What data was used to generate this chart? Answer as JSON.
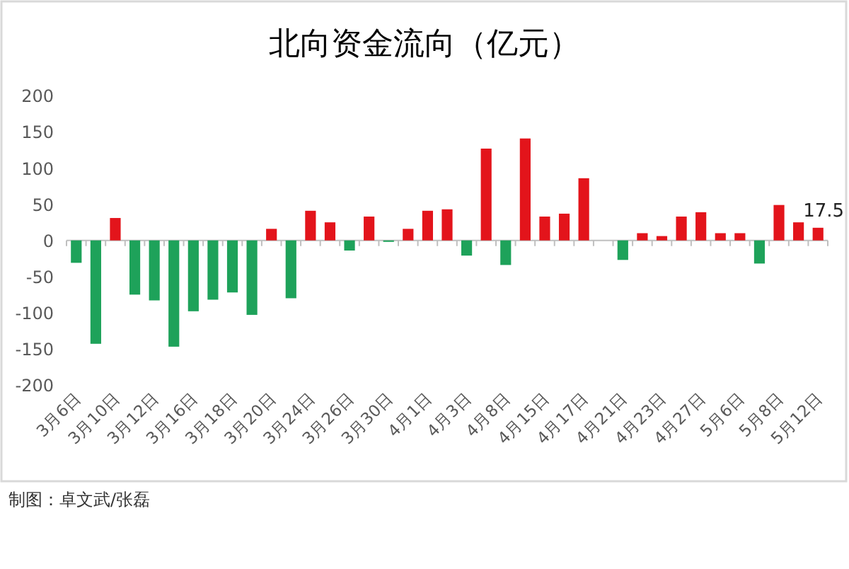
{
  "chart_data": {
    "type": "bar",
    "title": "北向资金流向（亿元）",
    "categories": [
      "3月6日",
      null,
      "3月10日",
      null,
      "3月12日",
      null,
      "3月16日",
      null,
      "3月18日",
      null,
      "3月20日",
      null,
      "3月24日",
      null,
      "3月26日",
      null,
      "3月30日",
      null,
      "4月1日",
      null,
      "4月3日",
      null,
      "4月8日",
      null,
      "4月15日",
      null,
      "4月17日",
      null,
      "4月21日",
      null,
      "4月23日",
      null,
      "4月27日",
      null,
      "5月6日",
      null,
      "5月8日",
      null,
      "5月12日"
    ],
    "values": [
      -31,
      -143,
      31,
      -75,
      -83,
      -147,
      -98,
      -82,
      -72,
      -103,
      16,
      -80,
      41,
      25,
      -14,
      33,
      -2,
      16,
      41,
      43,
      -21,
      127,
      -34,
      141,
      33,
      37,
      86,
      null,
      -27,
      10,
      6,
      33,
      39,
      10,
      10,
      -32,
      49,
      25,
      17.5
    ],
    "colors": [
      "#1ea25a",
      "#1ea25a",
      "#e3141b",
      "#1ea25a",
      "#1ea25a",
      "#1ea25a",
      "#1ea25a",
      "#1ea25a",
      "#1ea25a",
      "#1ea25a",
      "#e3141b",
      "#1ea25a",
      "#e3141b",
      "#e3141b",
      "#1ea25a",
      "#e3141b",
      "#1ea25a",
      "#e3141b",
      "#e3141b",
      "#e3141b",
      "#1ea25a",
      "#e3141b",
      "#1ea25a",
      "#e3141b",
      "#e3141b",
      "#e3141b",
      "#e3141b",
      null,
      "#1ea25a",
      "#e3141b",
      "#e3141b",
      "#e3141b",
      "#e3141b",
      "#e3141b",
      "#e3141b",
      "#1ea25a",
      "#e3141b",
      "#e3141b",
      "#e3141b"
    ],
    "value_labels": [
      null,
      null,
      null,
      null,
      null,
      null,
      null,
      null,
      null,
      null,
      null,
      null,
      null,
      null,
      null,
      null,
      null,
      null,
      null,
      null,
      null,
      null,
      null,
      null,
      null,
      null,
      null,
      null,
      null,
      null,
      null,
      null,
      null,
      null,
      null,
      null,
      null,
      null,
      "17.5"
    ],
    "ylim": [
      -200,
      200
    ],
    "yticks": [
      -200,
      -150,
      -100,
      -50,
      0,
      50,
      100,
      150,
      200
    ],
    "annotations": [
      "制图：卓文武/张磊"
    ]
  }
}
